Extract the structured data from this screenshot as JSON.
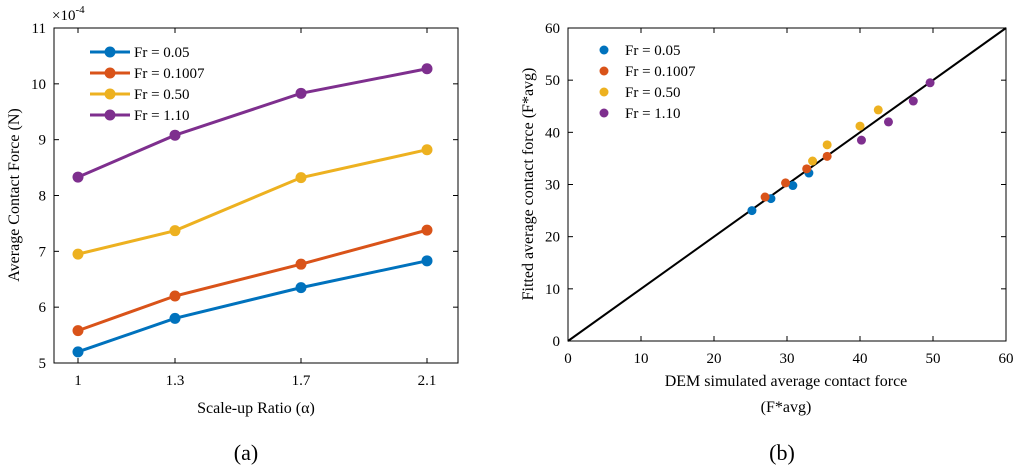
{
  "chart_data": [
    {
      "type": "line",
      "panel_label": "(a)",
      "categories": [
        "1",
        "1.3",
        "1.7",
        "2.1"
      ],
      "x": [
        1,
        1.3,
        1.7,
        2.1
      ],
      "series": [
        {
          "name": "Fr = 0.05",
          "color": "#0072BD",
          "values": [
            5.2,
            5.8,
            6.35,
            6.83
          ]
        },
        {
          "name": "Fr = 0.1007",
          "color": "#D95319",
          "values": [
            5.58,
            6.2,
            6.77,
            7.38
          ]
        },
        {
          "name": "Fr = 0.50",
          "color": "#EDB120",
          "values": [
            6.95,
            7.37,
            8.32,
            8.82
          ]
        },
        {
          "name": "Fr = 1.10",
          "color": "#7E2F8E",
          "values": [
            8.33,
            9.08,
            9.83,
            10.27
          ]
        }
      ],
      "xlabel": "Scale-up Ratio (α)",
      "ylabel": "Average Contact Force (N)",
      "ylim": [
        5,
        11
      ],
      "yticks": [
        5,
        6,
        7,
        8,
        9,
        10,
        11
      ],
      "y_multiplier": "×10",
      "y_multiplier_exp": "-4",
      "legend": "top-left"
    },
    {
      "type": "scatter",
      "panel_label": "(b)",
      "series": [
        {
          "name": "Fr = 0.05",
          "color": "#0072BD",
          "points": [
            [
              25.2,
              25.0
            ],
            [
              27.8,
              27.3
            ],
            [
              30.8,
              29.8
            ],
            [
              33.0,
              32.2
            ]
          ]
        },
        {
          "name": "Fr = 0.1007",
          "color": "#D95319",
          "points": [
            [
              27.0,
              27.6
            ],
            [
              29.8,
              30.3
            ],
            [
              32.7,
              33.0
            ],
            [
              35.5,
              35.4
            ]
          ]
        },
        {
          "name": "Fr = 0.50",
          "color": "#EDB120",
          "points": [
            [
              33.5,
              34.5
            ],
            [
              35.5,
              37.6
            ],
            [
              40.0,
              41.2
            ],
            [
              42.5,
              44.3
            ]
          ]
        },
        {
          "name": "Fr = 1.10",
          "color": "#7E2F8E",
          "points": [
            [
              40.2,
              38.5
            ],
            [
              43.9,
              42.0
            ],
            [
              47.3,
              46.0
            ],
            [
              49.6,
              49.5
            ]
          ]
        }
      ],
      "reference_line": "y = x",
      "xlabel": "DEM simulated average contact force",
      "xlabel_sub": "(F*avg)",
      "ylabel": "Fitted average contact force (F*avg)",
      "xlim": [
        0,
        60
      ],
      "ylim": [
        0,
        60
      ],
      "xticks": [
        0,
        10,
        20,
        30,
        40,
        50,
        60
      ],
      "yticks": [
        0,
        10,
        20,
        30,
        40,
        50,
        60
      ],
      "legend": "top-left"
    }
  ]
}
